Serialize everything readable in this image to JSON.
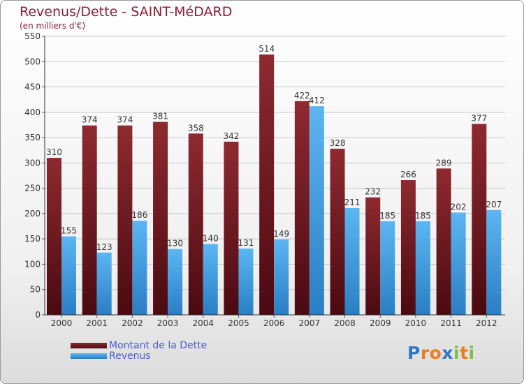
{
  "title": "Revenus/Dette - SAINT-MéDARD",
  "subtitle": "(en milliers d'€)",
  "colors": {
    "dette": "#7a1e24",
    "revenus": "#4aa3e6",
    "title": "#8a1f3a",
    "legend_text": "#4a5ad8"
  },
  "legend": [
    {
      "label": "Montant de la Dette",
      "color": "#7a1e24"
    },
    {
      "label": "Revenus",
      "color": "#4aa3e6"
    }
  ],
  "logo": {
    "letters": [
      "P",
      "r",
      "o",
      "x",
      "i",
      "t",
      "i"
    ],
    "colors": [
      "#2f78c8",
      "#f07a1e",
      "#f07a1e",
      "#2f78c8",
      "#7ac143",
      "#f07a1e",
      "#7ac143"
    ]
  },
  "chart_data": {
    "type": "bar",
    "categories": [
      "2000",
      "2001",
      "2002",
      "2003",
      "2004",
      "2005",
      "2006",
      "2007",
      "2008",
      "2009",
      "2010",
      "2011",
      "2012"
    ],
    "series": [
      {
        "name": "Montant de la Dette",
        "values": [
          310,
          374,
          374,
          381,
          358,
          342,
          514,
          422,
          328,
          232,
          266,
          289,
          377
        ]
      },
      {
        "name": "Revenus",
        "values": [
          155,
          123,
          186,
          130,
          140,
          131,
          149,
          412,
          211,
          185,
          185,
          202,
          207
        ]
      }
    ],
    "ylim": [
      0,
      550
    ],
    "yticks": [
      0,
      50,
      100,
      150,
      200,
      250,
      300,
      350,
      400,
      450,
      500,
      550
    ],
    "grid": true,
    "legend_position": "bottom-left"
  }
}
